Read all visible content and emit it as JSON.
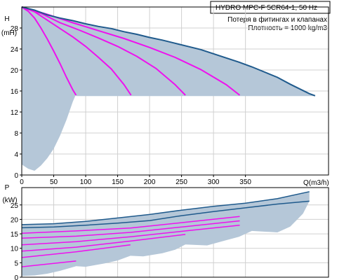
{
  "chart_data": [
    {
      "type": "line",
      "info": {
        "pump": "HYDRO MPC-F 5CR64-1, 50 Hz",
        "note1": "Потеря в фитингах и клапанах",
        "note2": "Плотность = 1000 kg/m3"
      },
      "ylabel": "H",
      "yunit": "(mH)",
      "xlabel": "Q(m3/h)",
      "xlim": [
        0,
        480
      ],
      "ylim": [
        0,
        32
      ],
      "xticks": [
        0,
        50,
        100,
        150,
        200,
        250,
        300,
        350
      ],
      "yticks": [
        0,
        4,
        8,
        12,
        16,
        20,
        24,
        28
      ],
      "colors": {
        "envelope": "#1f5a8c",
        "envelope_fill": "#b5c7d8",
        "curves": "#ee11ee"
      },
      "series": [
        {
          "x": [
            0,
            20,
            40,
            60,
            80,
            100,
            120,
            140,
            160,
            180,
            200,
            220,
            240,
            260,
            280,
            300,
            320,
            340,
            360,
            380,
            400,
            420,
            430,
            440,
            450,
            459
          ],
          "y": [
            32.0,
            31.4,
            30.5,
            29.9,
            29.4,
            28.8,
            28.3,
            27.9,
            27.3,
            26.8,
            26.2,
            25.7,
            25.1,
            24.5,
            23.9,
            23.1,
            22.3,
            21.5,
            20.6,
            19.6,
            18.6,
            17.3,
            16.7,
            16.1,
            15.5,
            15.1
          ]
        },
        {
          "x": [
            0,
            10,
            20,
            30,
            40,
            50,
            60,
            70,
            80,
            85
          ],
          "y": [
            32.0,
            31.2,
            29.9,
            28.0,
            25.9,
            23.6,
            21.2,
            18.6,
            16.2,
            15.2
          ]
        },
        {
          "x": [
            0,
            20,
            40,
            60,
            80,
            100,
            120,
            140,
            160,
            171
          ],
          "y": [
            32.0,
            31.1,
            29.5,
            27.9,
            26.3,
            24.5,
            22.4,
            20.2,
            17.2,
            15.2
          ]
        },
        {
          "x": [
            0,
            30,
            60,
            90,
            120,
            150,
            180,
            210,
            240,
            256
          ],
          "y": [
            32.0,
            30.8,
            29.0,
            27.6,
            26.1,
            24.5,
            22.6,
            20.3,
            17.2,
            15.2
          ]
        },
        {
          "x": [
            0,
            40,
            80,
            120,
            160,
            200,
            240,
            280,
            320,
            341
          ],
          "y": [
            32.0,
            30.6,
            29.0,
            27.5,
            26.0,
            24.3,
            22.4,
            20.1,
            17.2,
            15.2
          ]
        }
      ],
      "npsh_band": [
        {
          "x": 0,
          "y": 28.5
        },
        {
          "x": 20,
          "y": 28.1
        },
        {
          "x": 40,
          "y": 27.6
        },
        {
          "x": 60,
          "y": 26.6
        },
        {
          "x": 80,
          "y": 24.6
        },
        {
          "x": 85,
          "y": 15.4
        },
        {
          "x": 80,
          "y": 14.0
        },
        {
          "x": 70,
          "y": 10.5
        },
        {
          "x": 60,
          "y": 7.5
        },
        {
          "x": 50,
          "y": 5.0
        },
        {
          "x": 40,
          "y": 3.2
        },
        {
          "x": 30,
          "y": 1.8
        },
        {
          "x": 20,
          "y": 0.8
        },
        {
          "x": 10,
          "y": 1.2
        },
        {
          "x": 0,
          "y": 2.0
        }
      ]
    },
    {
      "type": "line",
      "ylabel": "P",
      "yunit": "(kW)",
      "xlim": [
        0,
        480
      ],
      "ylim": [
        0,
        31
      ],
      "yticks": [
        0,
        5,
        10,
        15,
        20,
        25
      ],
      "colors": {
        "envelope": "#1f5a8c",
        "envelope_fill": "#b5c7d8",
        "curves": "#ee11ee"
      },
      "series": [
        {
          "x": [
            0,
            50,
            100,
            150,
            200,
            250,
            300,
            350,
            400,
            450
          ],
          "y": [
            18.2,
            18.5,
            19.3,
            20.5,
            21.7,
            23.2,
            24.5,
            25.6,
            27.2,
            29.6
          ]
        },
        {
          "x": [
            0,
            50,
            100,
            150,
            200,
            250,
            300,
            350,
            400,
            450
          ],
          "y": [
            17.1,
            17.4,
            18.0,
            18.7,
            19.6,
            21.3,
            22.7,
            24.0,
            25.3,
            26.3
          ]
        },
        {
          "x": [
            0,
            85,
            170,
            256,
            341
          ],
          "y": [
            15.2,
            16.0,
            17.0,
            19.0,
            21.0
          ]
        },
        {
          "x": [
            0,
            85,
            170,
            256,
            341
          ],
          "y": [
            13.5,
            14.2,
            15.5,
            17.5,
            19.5
          ]
        },
        {
          "x": [
            0,
            85,
            170,
            256,
            341
          ],
          "y": [
            11.2,
            12.3,
            14.0,
            16.0,
            18.0
          ]
        },
        {
          "x": [
            0,
            85,
            170,
            256
          ],
          "y": [
            9.0,
            10.4,
            12.5,
            14.8
          ]
        },
        {
          "x": [
            0,
            85,
            170
          ],
          "y": [
            6.8,
            8.8,
            11.2
          ]
        },
        {
          "x": [
            0,
            85
          ],
          "y": [
            3.6,
            5.6
          ]
        }
      ]
    }
  ]
}
